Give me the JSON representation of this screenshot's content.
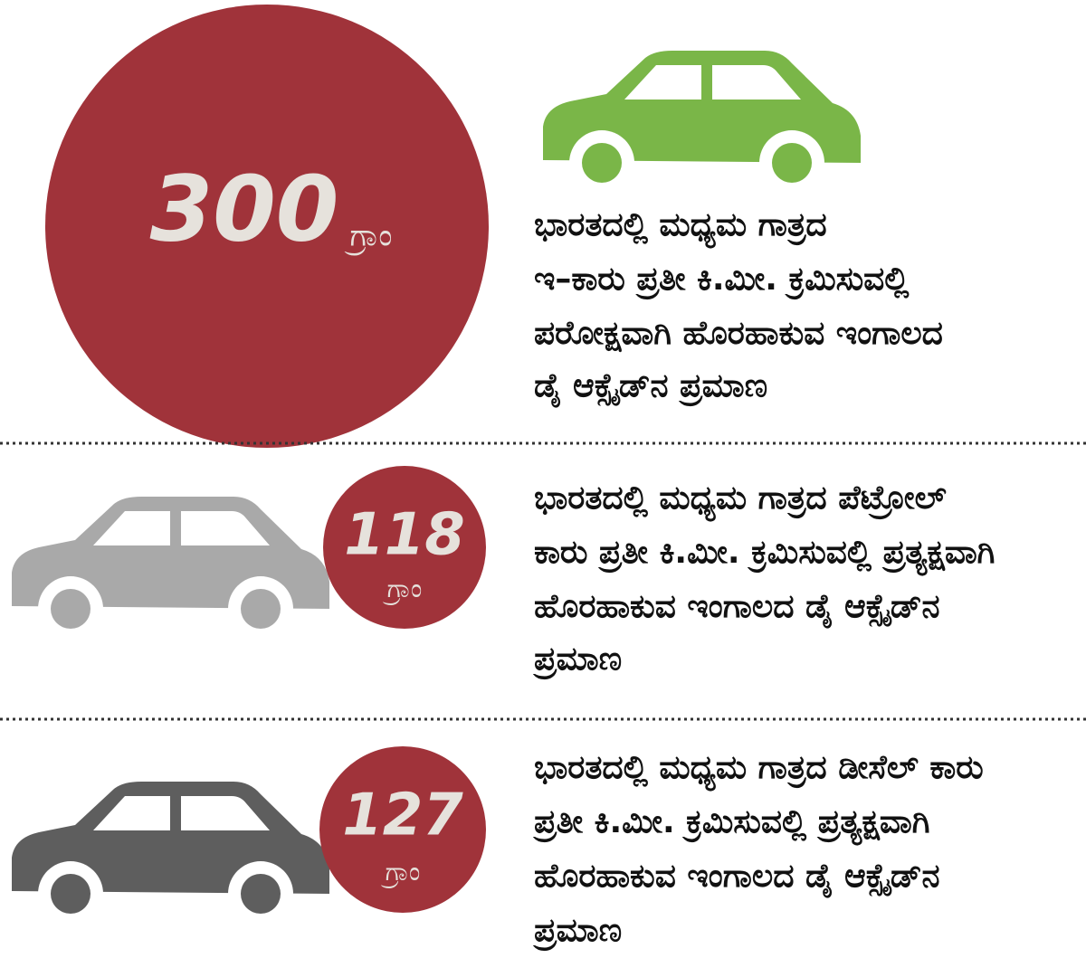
{
  "items": [
    {
      "value": "300",
      "unit": "ಗ್ರಾಂ",
      "lines": [
        "ಭಾರತದಲ್ಲಿ ಮಧ್ಯಮ ಗಾತ್ರದ",
        "ಇ–ಕಾರು ಪ್ರತೀ ಕಿ.ಮೀ. ಕ್ರಮಿಸುವಲ್ಲಿ",
        "ಪರೋಕ್ಷವಾಗಿ ಹೊರಹಾಕುವ ಇಂಗಾಲದ",
        "ಡೈ ಆಕ್ಸೈಡ್‌ನ ಪ್ರಮಾಣ"
      ]
    },
    {
      "value": "118",
      "unit": "ಗ್ರಾಂ",
      "lines": [
        "ಭಾರತದಲ್ಲಿ ಮಧ್ಯಮ ಗಾತ್ರದ ಪೆಟ್ರೋಲ್",
        "ಕಾರು ಪ್ರತೀ ಕಿ.ಮೀ. ಕ್ರಮಿಸುವಲ್ಲಿ ಪ್ರತ್ಯಕ್ಷವಾಗಿ",
        "ಹೊರಹಾಕುವ ಇಂಗಾಲದ ಡೈ ಆಕ್ಸೈಡ್‌ನ",
        "ಪ್ರಮಾಣ"
      ]
    },
    {
      "value": "127",
      "unit": "ಗ್ರಾಂ",
      "lines": [
        "ಭಾರತದಲ್ಲಿ ಮಧ್ಯಮ ಗಾತ್ರದ ಡೀಸೆಲ್ ಕಾರು",
        "ಪ್ರತೀ ಕಿ.ಮೀ. ಕ್ರಮಿಸುವಲ್ಲಿ ಪ್ರತ್ಯಕ್ಷವಾಗಿ",
        "ಹೊರಹಾಕುವ ಇಂಗಾಲದ ಡೈ ಆಕ್ಸೈಡ್‌ನ",
        "ಪ್ರಮಾಣ"
      ]
    }
  ]
}
